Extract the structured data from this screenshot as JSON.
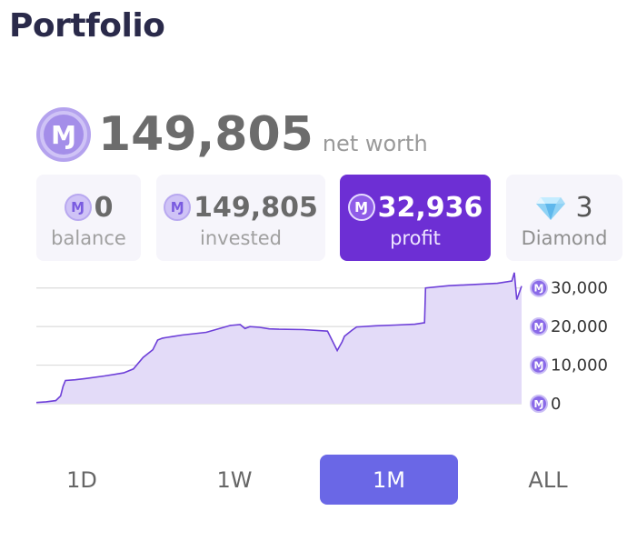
{
  "header": {
    "title": "Portfolio"
  },
  "net_worth": {
    "value": "149,805",
    "label": "net worth",
    "currency_icon": "monero-coin-icon",
    "currency_glyph": "Ɱ"
  },
  "stats": {
    "balance": {
      "value": "0",
      "label": "balance"
    },
    "invested": {
      "value": "149,805",
      "label": "invested"
    },
    "profit": {
      "value": "32,936",
      "label": "profit"
    },
    "diamond": {
      "value": "3",
      "label": "Diamond",
      "icon": "diamond-icon"
    }
  },
  "colors": {
    "accent_purple": "#6d2fd4",
    "range_active": "#6a67e6",
    "chart_line": "#6d3fd8",
    "chart_fill": "#e3dbf8"
  },
  "chart_data": {
    "type": "area",
    "y_ticks": [
      {
        "value": 30000,
        "label": "30,000"
      },
      {
        "value": 20000,
        "label": "20,000"
      },
      {
        "value": 10000,
        "label": "10,000"
      },
      {
        "value": 0,
        "label": "0"
      }
    ],
    "ylim": [
      0,
      33000
    ],
    "grid": true,
    "x": [
      0,
      0.02,
      0.04,
      0.05,
      0.055,
      0.06,
      0.08,
      0.1,
      0.14,
      0.18,
      0.2,
      0.22,
      0.24,
      0.25,
      0.26,
      0.27,
      0.28,
      0.3,
      0.35,
      0.4,
      0.42,
      0.43,
      0.44,
      0.46,
      0.48,
      0.5,
      0.55,
      0.6,
      0.62,
      0.63,
      0.635,
      0.64,
      0.65,
      0.66,
      0.7,
      0.74,
      0.78,
      0.8,
      0.802,
      0.85,
      0.9,
      0.95,
      0.98,
      0.985,
      0.99,
      1.0
    ],
    "values": [
      300,
      500,
      800,
      2000,
      4500,
      6000,
      6200,
      6500,
      7200,
      8000,
      9000,
      12000,
      14000,
      16500,
      17000,
      17200,
      17400,
      17800,
      18500,
      20300,
      20500,
      19500,
      20000,
      19800,
      19400,
      19300,
      19200,
      18800,
      13800,
      16000,
      17500,
      18000,
      19000,
      19900,
      20200,
      20400,
      20600,
      21000,
      30000,
      30600,
      30900,
      31200,
      31800,
      34000,
      27000,
      30500
    ]
  },
  "time_ranges": [
    {
      "label": "1D",
      "active": false
    },
    {
      "label": "1W",
      "active": false
    },
    {
      "label": "1M",
      "active": true
    },
    {
      "label": "ALL",
      "active": false
    }
  ]
}
